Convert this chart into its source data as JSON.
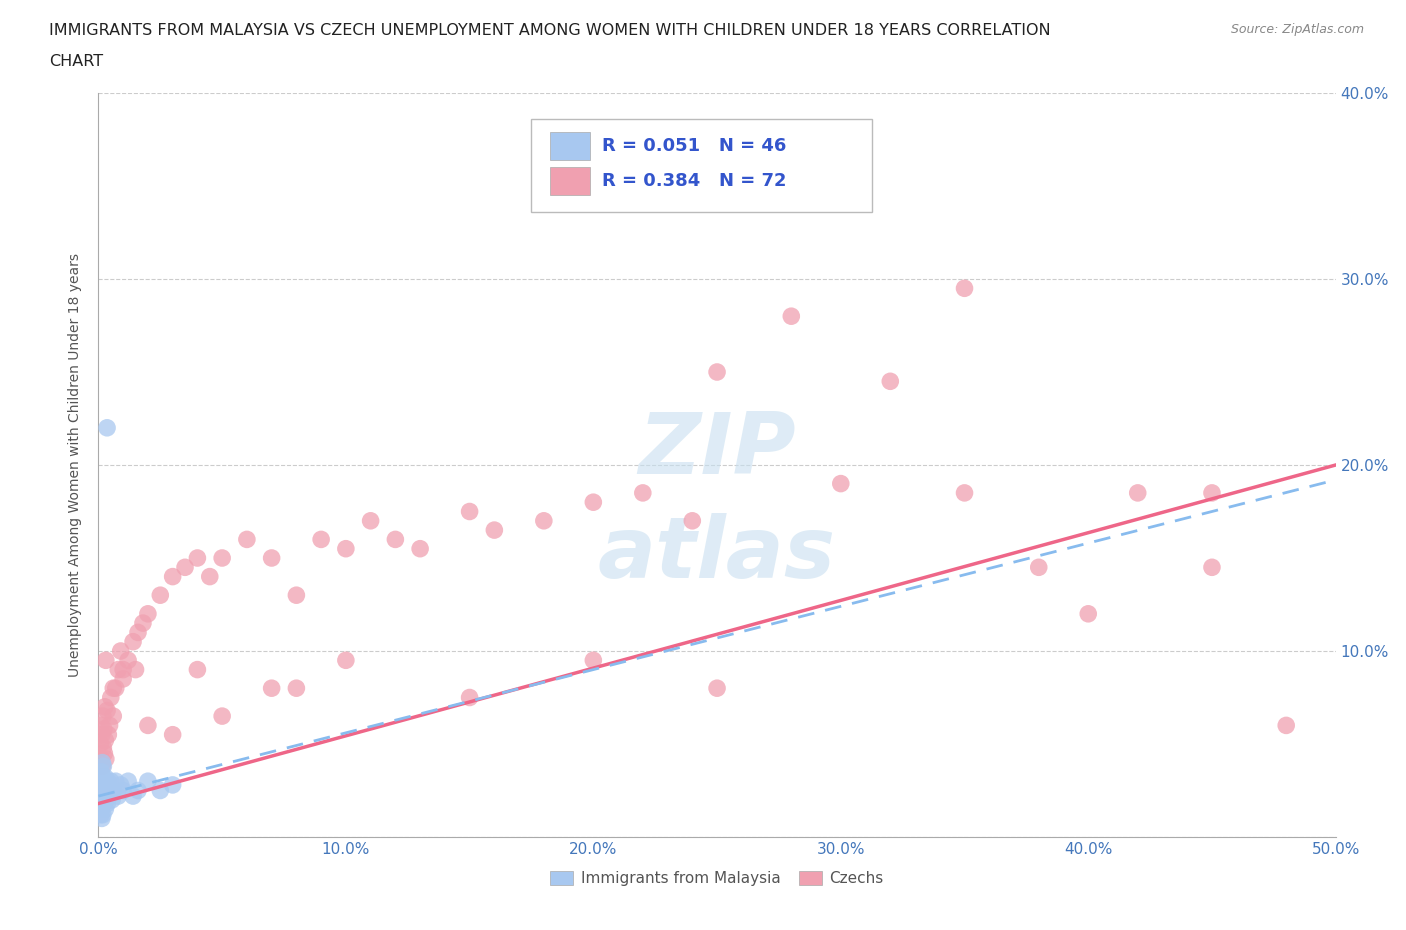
{
  "title_line1": "IMMIGRANTS FROM MALAYSIA VS CZECH UNEMPLOYMENT AMONG WOMEN WITH CHILDREN UNDER 18 YEARS CORRELATION",
  "title_line2": "CHART",
  "source_text": "Source: ZipAtlas.com",
  "ylabel": "Unemployment Among Women with Children Under 18 years",
  "xlim": [
    0.0,
    0.5
  ],
  "ylim": [
    0.0,
    0.4
  ],
  "xticks": [
    0.0,
    0.1,
    0.2,
    0.3,
    0.4,
    0.5
  ],
  "yticks": [
    0.0,
    0.1,
    0.2,
    0.3,
    0.4
  ],
  "xticklabels": [
    "0.0%",
    "10.0%",
    "20.0%",
    "30.0%",
    "40.0%",
    "50.0%"
  ],
  "yticklabels_right": [
    "",
    "10.0%",
    "20.0%",
    "30.0%",
    "40.0%"
  ],
  "series1_color": "#A8C8F0",
  "series2_color": "#F0A0B0",
  "series1_label": "Immigrants from Malaysia",
  "series2_label": "Czechs",
  "series1_R": "0.051",
  "series1_N": "46",
  "series2_R": "0.384",
  "series2_N": "72",
  "legend_R_color": "#3355CC",
  "background_color": "#ffffff",
  "grid_color": "#cccccc",
  "trendline1_color": "#88BBEE",
  "trendline2_color": "#EE6688",
  "series1_x": [
    0.0008,
    0.0008,
    0.001,
    0.001,
    0.001,
    0.0012,
    0.0012,
    0.0012,
    0.0014,
    0.0014,
    0.0014,
    0.0016,
    0.0016,
    0.0016,
    0.0018,
    0.0018,
    0.0018,
    0.002,
    0.002,
    0.0022,
    0.0022,
    0.0024,
    0.0026,
    0.0028,
    0.0028,
    0.003,
    0.0032,
    0.0034,
    0.0036,
    0.0038,
    0.004,
    0.0045,
    0.005,
    0.0055,
    0.006,
    0.007,
    0.008,
    0.009,
    0.01,
    0.012,
    0.014,
    0.016,
    0.02,
    0.025,
    0.03,
    0.0035
  ],
  "series1_y": [
    0.028,
    0.022,
    0.03,
    0.018,
    0.012,
    0.035,
    0.025,
    0.015,
    0.03,
    0.02,
    0.01,
    0.04,
    0.028,
    0.018,
    0.032,
    0.022,
    0.012,
    0.038,
    0.025,
    0.03,
    0.018,
    0.025,
    0.022,
    0.032,
    0.015,
    0.028,
    0.02,
    0.025,
    0.018,
    0.03,
    0.022,
    0.025,
    0.03,
    0.02,
    0.025,
    0.03,
    0.022,
    0.028,
    0.025,
    0.03,
    0.022,
    0.025,
    0.03,
    0.025,
    0.028,
    0.22
  ],
  "series2_x": [
    0.0008,
    0.001,
    0.0012,
    0.0014,
    0.0016,
    0.0018,
    0.002,
    0.0022,
    0.0024,
    0.0026,
    0.0028,
    0.003,
    0.0035,
    0.004,
    0.0045,
    0.005,
    0.006,
    0.007,
    0.008,
    0.009,
    0.01,
    0.012,
    0.014,
    0.016,
    0.018,
    0.02,
    0.025,
    0.03,
    0.035,
    0.04,
    0.045,
    0.05,
    0.06,
    0.07,
    0.08,
    0.09,
    0.1,
    0.11,
    0.12,
    0.13,
    0.15,
    0.16,
    0.18,
    0.2,
    0.22,
    0.24,
    0.25,
    0.28,
    0.3,
    0.32,
    0.35,
    0.38,
    0.4,
    0.42,
    0.45,
    0.48,
    0.003,
    0.006,
    0.01,
    0.015,
    0.02,
    0.03,
    0.05,
    0.08,
    0.15,
    0.25,
    0.35,
    0.45,
    0.04,
    0.07,
    0.1,
    0.2
  ],
  "series2_y": [
    0.05,
    0.06,
    0.042,
    0.055,
    0.038,
    0.065,
    0.048,
    0.058,
    0.045,
    0.07,
    0.052,
    0.042,
    0.068,
    0.055,
    0.06,
    0.075,
    0.065,
    0.08,
    0.09,
    0.1,
    0.085,
    0.095,
    0.105,
    0.11,
    0.115,
    0.12,
    0.13,
    0.14,
    0.145,
    0.15,
    0.14,
    0.15,
    0.16,
    0.15,
    0.13,
    0.16,
    0.155,
    0.17,
    0.16,
    0.155,
    0.175,
    0.165,
    0.17,
    0.18,
    0.185,
    0.17,
    0.25,
    0.28,
    0.19,
    0.245,
    0.295,
    0.145,
    0.12,
    0.185,
    0.185,
    0.06,
    0.095,
    0.08,
    0.09,
    0.09,
    0.06,
    0.055,
    0.065,
    0.08,
    0.075,
    0.08,
    0.185,
    0.145,
    0.09,
    0.08,
    0.095,
    0.095
  ],
  "watermark_line1": "ZIP",
  "watermark_line2": "atlas",
  "trendline1_slope": 0.38,
  "trendline1_intercept": 0.025,
  "trendline2_slope": 0.38,
  "trendline2_intercept": 0.018
}
